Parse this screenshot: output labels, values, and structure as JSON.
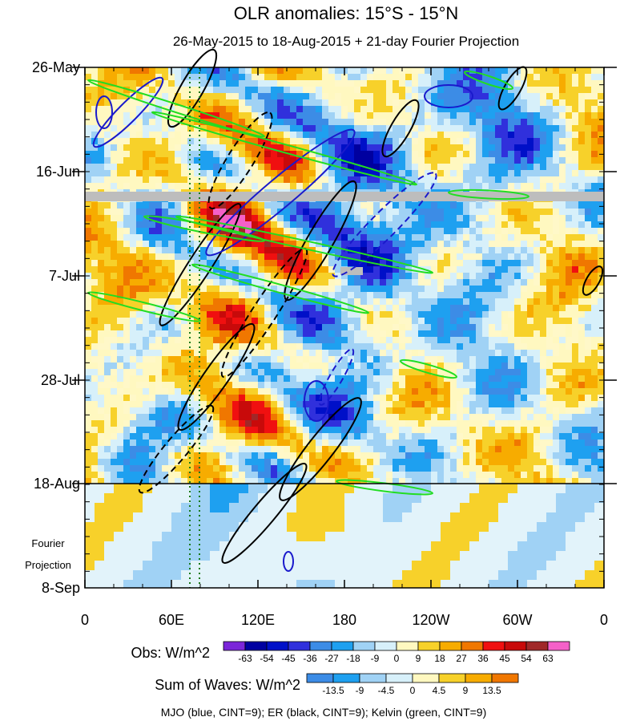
{
  "chart_data": {
    "type": "heatmap",
    "title": "OLR anomalies: 15°S - 15°N",
    "subtitle": "26-May-2015 to 18-Aug-2015 + 21-day Fourier Projection",
    "x_ticks": [
      "0",
      "60E",
      "120E",
      "180",
      "120W",
      "60W",
      "0"
    ],
    "y_ticks": [
      "26-May",
      "16-Jun",
      "7-Jul",
      "28-Jul",
      "18-Aug",
      "8-Sep"
    ],
    "fourier_label_1": "Fourier",
    "fourier_label_2": "Projection",
    "obs_label": "Obs: W/m^2",
    "obs_levels": [
      "-63",
      "-54",
      "-45",
      "-36",
      "-27",
      "-18",
      "-9",
      "0",
      "9",
      "18",
      "27",
      "36",
      "45",
      "54",
      "63"
    ],
    "obs_colors": [
      "#7b25d9",
      "#0000a0",
      "#0010c8",
      "#3030dc",
      "#3c8ce6",
      "#1ea0f0",
      "#a0d2f5",
      "#d7f0fa",
      "#fff8c0",
      "#f7d12a",
      "#f7ac00",
      "#f07700",
      "#f01010",
      "#c80a0a",
      "#a02828",
      "#f560c8"
    ],
    "waves_label": "Sum of Waves: W/m^2",
    "waves_levels": [
      "-13.5",
      "-9",
      "-4.5",
      "0",
      "4.5",
      "9",
      "13.5"
    ],
    "waves_colors": [
      "#3c8ce6",
      "#1ea0f0",
      "#a0d2f5",
      "#d7f0fa",
      "#fff8c0",
      "#f7d12a",
      "#f7ac00",
      "#f07700"
    ],
    "legend_note": "MJO (blue, CINT=9); ER (black, CINT=9); Kelvin (green, CINT=9)",
    "grid": false
  }
}
